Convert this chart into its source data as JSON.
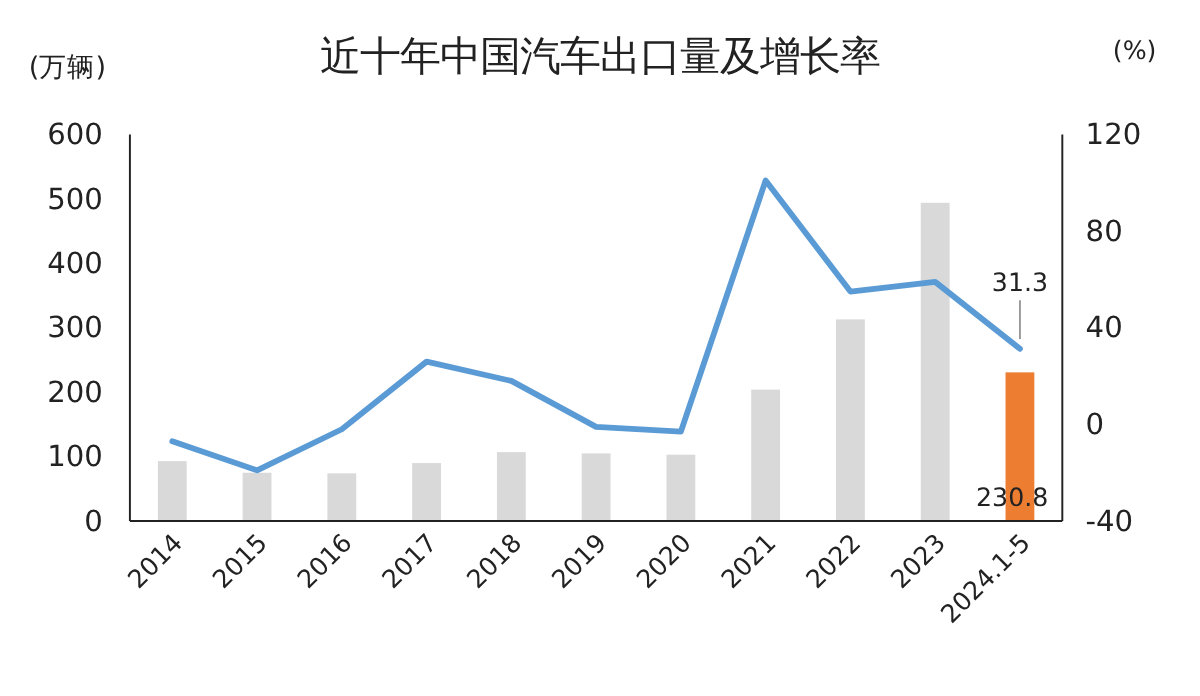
{
  "chart_data": {
    "type": "bar",
    "title": "近十年中国汽车出口量及增长率",
    "ylabel": "(万辆)",
    "y2label": "(%)",
    "categories": [
      "2014",
      "2015",
      "2016",
      "2017",
      "2018",
      "2019",
      "2020",
      "2021",
      "2022",
      "2023",
      "2024.1-5"
    ],
    "series": [
      {
        "colors": [
          "#d9d9d9",
          "#d9d9d9",
          "#d9d9d9",
          "#d9d9d9",
          "#d9d9d9",
          "#d9d9d9",
          "#d9d9d9",
          "#d9d9d9",
          "#d9d9d9",
          "#d9d9d9",
          "#ed7d31"
        ],
        "values": [
          93,
          75,
          74,
          90,
          107,
          105,
          103,
          204,
          313,
          494,
          230.8
        ],
        "value_labels": [
          null,
          null,
          null,
          null,
          null,
          null,
          null,
          null,
          null,
          null,
          "230.8"
        ]
      },
      {
        "type": "line",
        "axis": "y2",
        "color": "#5b9bd5",
        "values": [
          -7,
          -19,
          -2,
          26,
          18,
          -1,
          -3,
          101,
          55,
          59,
          31.3
        ],
        "value_labels": [
          null,
          null,
          null,
          null,
          null,
          null,
          null,
          null,
          null,
          null,
          "31.3"
        ]
      }
    ],
    "ylim": [
      0,
      600
    ],
    "yticks": [
      0,
      100,
      200,
      300,
      400,
      500,
      600
    ],
    "y2lim": [
      -40,
      120
    ],
    "y2ticks": [
      -40,
      0,
      40,
      80,
      120
    ],
    "grid": false
  }
}
